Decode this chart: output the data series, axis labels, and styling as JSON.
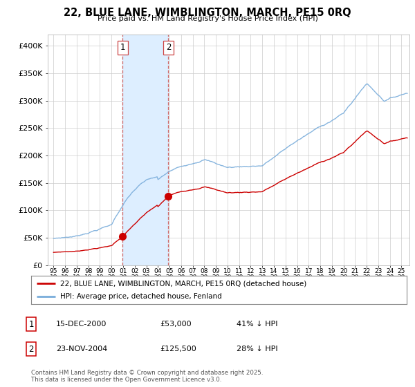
{
  "title": "22, BLUE LANE, WIMBLINGTON, MARCH, PE15 0RQ",
  "subtitle": "Price paid vs. HM Land Registry's House Price Index (HPI)",
  "legend_line1": "22, BLUE LANE, WIMBLINGTON, MARCH, PE15 0RQ (detached house)",
  "legend_line2": "HPI: Average price, detached house, Fenland",
  "footnote": "Contains HM Land Registry data © Crown copyright and database right 2025.\nThis data is licensed under the Open Government Licence v3.0.",
  "annotation1_date": "15-DEC-2000",
  "annotation1_price": "£53,000",
  "annotation1_hpi": "41% ↓ HPI",
  "annotation2_date": "23-NOV-2004",
  "annotation2_price": "£125,500",
  "annotation2_hpi": "28% ↓ HPI",
  "sale1_x": 2000.958,
  "sale1_y": 53000,
  "sale2_x": 2004.9,
  "sale2_y": 125500,
  "red_color": "#cc0000",
  "blue_color": "#7aaddb",
  "shade_color": "#ddeeff",
  "dashed_color": "#cc6666",
  "ylim_min": 0,
  "ylim_max": 420000,
  "xlim_min": 1994.5,
  "xlim_max": 2025.7,
  "yticks": [
    0,
    50000,
    100000,
    150000,
    200000,
    250000,
    300000,
    350000,
    400000
  ],
  "ytick_labels": [
    "£0",
    "£50K",
    "£100K",
    "£150K",
    "£200K",
    "£250K",
    "£300K",
    "£350K",
    "£400K"
  ],
  "xtick_years": [
    1995,
    1996,
    1997,
    1998,
    1999,
    2000,
    2001,
    2002,
    2003,
    2004,
    2005,
    2006,
    2007,
    2008,
    2009,
    2010,
    2011,
    2012,
    2013,
    2014,
    2015,
    2016,
    2017,
    2018,
    2019,
    2020,
    2021,
    2022,
    2023,
    2024,
    2025
  ]
}
